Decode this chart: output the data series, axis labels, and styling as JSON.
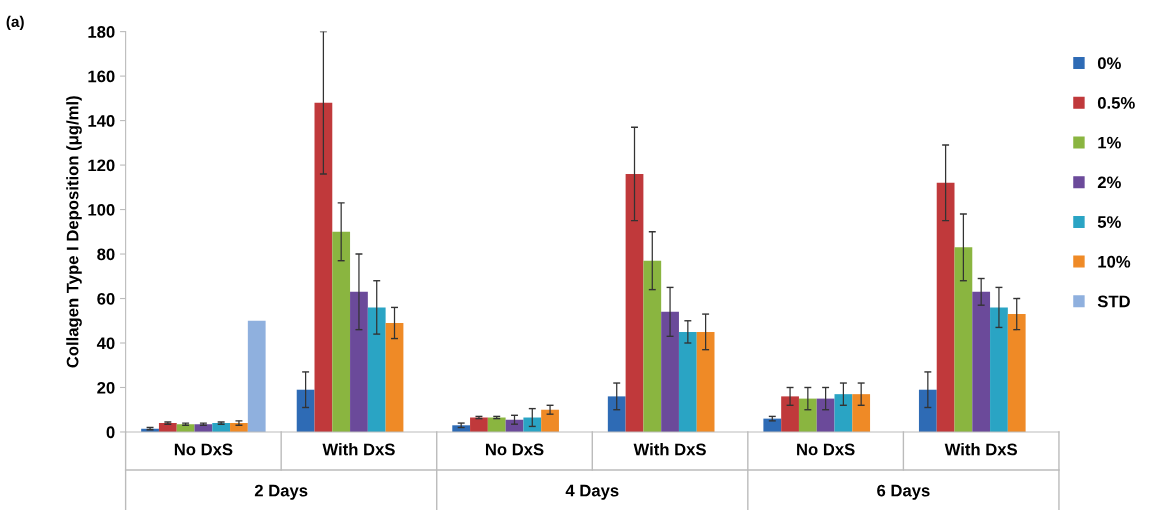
{
  "chart_data": {
    "type": "bar",
    "ylabel": "Collagen Type I Deposition (μg/ml)",
    "categories": [
      "No DxS",
      "With DxS",
      "No DxS",
      "With DxS",
      "No DxS",
      "With DxS"
    ],
    "annotations": [
      "(a)",
      "2 Days",
      "4 Days",
      "6 Days"
    ],
    "ylim": [
      0,
      180
    ],
    "yticks": [
      0,
      20,
      40,
      60,
      80,
      100,
      120,
      140,
      160,
      180
    ],
    "grid": false,
    "legend": "right",
    "series": [
      {
        "name": "0%",
        "color": "#2e6bb5",
        "values": [
          1.5,
          19,
          3,
          16,
          6,
          19
        ],
        "errors": [
          0.5,
          8,
          1,
          6,
          1,
          8
        ]
      },
      {
        "name": "0.5%",
        "color": "#c0393b",
        "values": [
          4,
          148,
          6.5,
          116,
          16,
          112
        ],
        "errors": [
          0.5,
          32,
          0.5,
          21,
          4,
          17
        ]
      },
      {
        "name": "1%",
        "color": "#8ab540",
        "values": [
          3.5,
          90,
          6.5,
          77,
          15,
          83
        ],
        "errors": [
          0.5,
          13,
          0.5,
          13,
          5,
          15
        ]
      },
      {
        "name": "2%",
        "color": "#6b4a9a",
        "values": [
          3.5,
          63,
          5.5,
          54,
          15,
          63
        ],
        "errors": [
          0.5,
          17,
          2,
          11,
          5,
          6
        ]
      },
      {
        "name": "5%",
        "color": "#2aa4c4",
        "values": [
          4,
          56,
          6.5,
          45,
          17,
          56
        ],
        "errors": [
          0.5,
          12,
          4,
          5,
          5,
          9
        ]
      },
      {
        "name": "10%",
        "color": "#ef8a26",
        "values": [
          4,
          49,
          10,
          45,
          17,
          53
        ],
        "errors": [
          1,
          7,
          2,
          8,
          5,
          7
        ]
      },
      {
        "name": "STD",
        "color": "#8fb0de",
        "values": [
          50,
          null,
          null,
          null,
          null,
          null
        ],
        "errors": [
          null,
          null,
          null,
          null,
          null,
          null
        ]
      }
    ]
  }
}
